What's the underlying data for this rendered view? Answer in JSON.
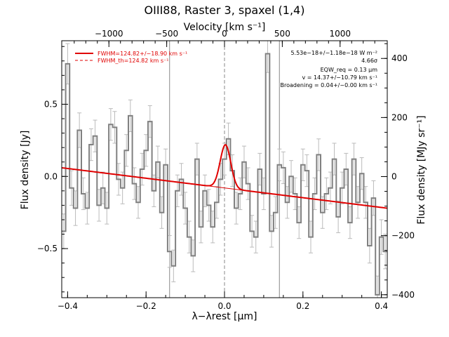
{
  "chart_data": {
    "type": "line",
    "title": "OIII88, Raster 3, spaxel (1,4)",
    "xlabel_bottom": "λ−λrest [μm]",
    "xlabel_top": "Velocity [km s⁻¹]",
    "ylabel_left": "Flux density [Jy]",
    "ylabel_right": "Flux density [MJy sr⁻¹]",
    "xlim": [
      -0.415,
      0.415
    ],
    "ylim": [
      -0.84,
      0.94
    ],
    "ylim_right": [
      -410,
      460
    ],
    "x_ticks": [
      -0.4,
      -0.2,
      0.0,
      0.2,
      0.4
    ],
    "x_tick_labels": [
      "−0.4",
      "−0.2",
      "0.0",
      "0.2",
      "0.4"
    ],
    "y_ticks": [
      -0.5,
      0.0,
      0.5
    ],
    "y_tick_labels": [
      "−0.5",
      "0.0",
      "0.5"
    ],
    "velocity_ticks": [
      -1000,
      -500,
      0,
      500,
      1000
    ],
    "velocity_tick_labels": [
      "−1000",
      "−500",
      "0",
      "500",
      "1000"
    ],
    "right_ticks": [
      -400,
      -200,
      0,
      200,
      400
    ],
    "right_tick_labels": [
      "−400",
      "−200",
      "0",
      "200",
      "400"
    ],
    "vertical_lines_um": [
      -0.14,
      0.0,
      0.14
    ],
    "legend": {
      "position": "top-left",
      "entries": [
        {
          "label": "FWHM=124.82+/−18.90 km s⁻¹",
          "style": "solid",
          "color": "#e00000"
        },
        {
          "label": "FWHM_th=124.82 km s⁻¹",
          "style": "dashed",
          "color": "#e00000"
        }
      ]
    },
    "annotations": [
      "5.53e−18+/−1.18e−18 W m⁻²",
      "4.66σ",
      "EQW_req = 0.13 μm",
      "v = 14.37+/−10.79 km s⁻¹",
      "Broadening = 0.04+/−0.00 km s⁻¹"
    ],
    "fit": {
      "color": "#e00000",
      "continuum_at_xlim": [
        0.06,
        -0.22
      ],
      "gaussian_center_um": 0.0025,
      "gaussian_sigma_um": 0.0135,
      "gaussian_amplitude_jy": 0.3
    },
    "series": [
      {
        "style": "step",
        "color": "#808080",
        "x": [
          -0.41,
          -0.4,
          -0.39,
          -0.38,
          -0.37,
          -0.36,
          -0.35,
          -0.34,
          -0.33,
          -0.32,
          -0.31,
          -0.3,
          -0.29,
          -0.28,
          -0.27,
          -0.26,
          -0.25,
          -0.24,
          -0.23,
          -0.22,
          -0.21,
          -0.2,
          -0.19,
          -0.18,
          -0.17,
          -0.16,
          -0.15,
          -0.14,
          -0.13,
          -0.12,
          -0.11,
          -0.1,
          -0.09,
          -0.08,
          -0.07,
          -0.06,
          -0.05,
          -0.04,
          -0.03,
          -0.02,
          -0.01,
          0.0,
          0.01,
          0.02,
          0.03,
          0.04,
          0.05,
          0.06,
          0.07,
          0.08,
          0.09,
          0.1,
          0.11,
          0.12,
          0.13,
          0.14,
          0.15,
          0.16,
          0.17,
          0.18,
          0.19,
          0.2,
          0.21,
          0.22,
          0.23,
          0.24,
          0.25,
          0.26,
          0.27,
          0.28,
          0.29,
          0.3,
          0.31,
          0.32,
          0.33,
          0.34,
          0.35,
          0.36,
          0.37,
          0.38,
          0.39,
          0.4,
          0.41
        ],
        "values": [
          -0.38,
          0.78,
          -0.08,
          -0.22,
          0.32,
          -0.12,
          -0.22,
          0.22,
          0.28,
          -0.2,
          -0.08,
          -0.22,
          0.36,
          0.34,
          -0.02,
          -0.08,
          0.18,
          0.42,
          -0.05,
          -0.18,
          0.05,
          0.18,
          0.38,
          -0.1,
          0.1,
          -0.25,
          0.08,
          -0.52,
          -0.62,
          -0.1,
          -0.02,
          -0.22,
          -0.42,
          -0.55,
          0.12,
          -0.35,
          -0.1,
          -0.2,
          -0.35,
          -0.18,
          -0.02,
          0.12,
          0.26,
          0.04,
          -0.22,
          -0.12,
          0.1,
          -0.05,
          -0.38,
          -0.42,
          0.05,
          -0.12,
          0.85,
          -0.38,
          -0.25,
          0.08,
          0.06,
          -0.18,
          0.0,
          -0.12,
          -0.32,
          0.08,
          0.04,
          -0.42,
          -0.12,
          0.15,
          -0.25,
          -0.12,
          -0.08,
          0.12,
          -0.28,
          -0.08,
          0.05,
          -0.32,
          0.12,
          -0.18,
          0.02,
          -0.18,
          -0.48,
          -0.15,
          -0.82,
          -0.42,
          -0.52
        ],
        "errors": [
          0.12,
          0.14,
          0.12,
          0.12,
          0.12,
          0.11,
          0.11,
          0.11,
          0.11,
          0.11,
          0.11,
          0.11,
          0.11,
          0.11,
          0.11,
          0.11,
          0.11,
          0.11,
          0.11,
          0.11,
          0.11,
          0.11,
          0.11,
          0.11,
          0.11,
          0.11,
          0.11,
          0.11,
          0.11,
          0.11,
          0.11,
          0.11,
          0.11,
          0.11,
          0.11,
          0.11,
          0.11,
          0.11,
          0.11,
          0.11,
          0.11,
          0.11,
          0.11,
          0.11,
          0.11,
          0.11,
          0.11,
          0.11,
          0.11,
          0.11,
          0.11,
          0.11,
          0.13,
          0.11,
          0.11,
          0.11,
          0.11,
          0.11,
          0.11,
          0.11,
          0.11,
          0.11,
          0.11,
          0.11,
          0.11,
          0.11,
          0.11,
          0.11,
          0.11,
          0.11,
          0.11,
          0.11,
          0.11,
          0.11,
          0.11,
          0.11,
          0.11,
          0.11,
          0.12,
          0.12,
          0.13,
          0.12,
          0.12
        ]
      }
    ]
  }
}
